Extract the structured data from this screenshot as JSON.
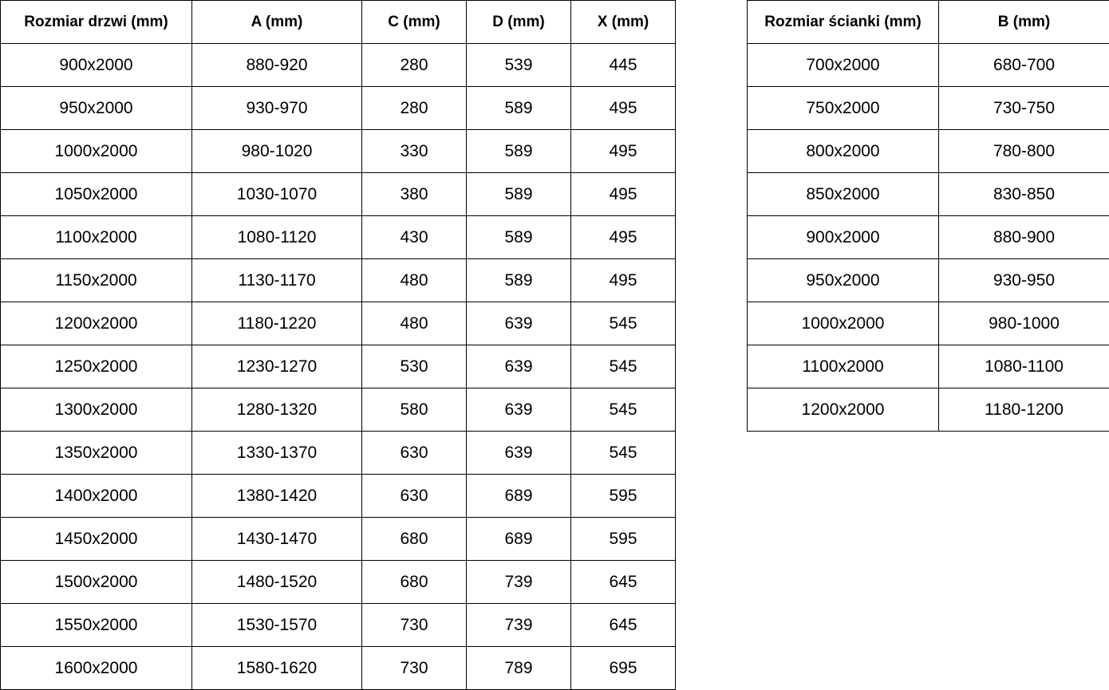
{
  "doors_table": {
    "headers": [
      "Rozmiar drzwi (mm)",
      "A (mm)",
      "C (mm)",
      "D (mm)",
      "X (mm)"
    ],
    "rows": [
      [
        "900x2000",
        "880-920",
        "280",
        "539",
        "445"
      ],
      [
        "950x2000",
        "930-970",
        "280",
        "589",
        "495"
      ],
      [
        "1000x2000",
        "980-1020",
        "330",
        "589",
        "495"
      ],
      [
        "1050x2000",
        "1030-1070",
        "380",
        "589",
        "495"
      ],
      [
        "1100x2000",
        "1080-1120",
        "430",
        "589",
        "495"
      ],
      [
        "1150x2000",
        "1130-1170",
        "480",
        "589",
        "495"
      ],
      [
        "1200x2000",
        "1180-1220",
        "480",
        "639",
        "545"
      ],
      [
        "1250x2000",
        "1230-1270",
        "530",
        "639",
        "545"
      ],
      [
        "1300x2000",
        "1280-1320",
        "580",
        "639",
        "545"
      ],
      [
        "1350x2000",
        "1330-1370",
        "630",
        "639",
        "545"
      ],
      [
        "1400x2000",
        "1380-1420",
        "630",
        "689",
        "595"
      ],
      [
        "1450x2000",
        "1430-1470",
        "680",
        "689",
        "595"
      ],
      [
        "1500x2000",
        "1480-1520",
        "680",
        "739",
        "645"
      ],
      [
        "1550x2000",
        "1530-1570",
        "730",
        "739",
        "645"
      ],
      [
        "1600x2000",
        "1580-1620",
        "730",
        "789",
        "695"
      ]
    ]
  },
  "walls_table": {
    "headers": [
      "Rozmiar ścianki (mm)",
      "B (mm)"
    ],
    "rows": [
      [
        "700x2000",
        "680-700"
      ],
      [
        "750x2000",
        "730-750"
      ],
      [
        "800x2000",
        "780-800"
      ],
      [
        "850x2000",
        "830-850"
      ],
      [
        "900x2000",
        "880-900"
      ],
      [
        "950x2000",
        "930-950"
      ],
      [
        "1000x2000",
        "980-1000"
      ],
      [
        "1100x2000",
        "1080-1100"
      ],
      [
        "1200x2000",
        "1180-1200"
      ]
    ]
  }
}
